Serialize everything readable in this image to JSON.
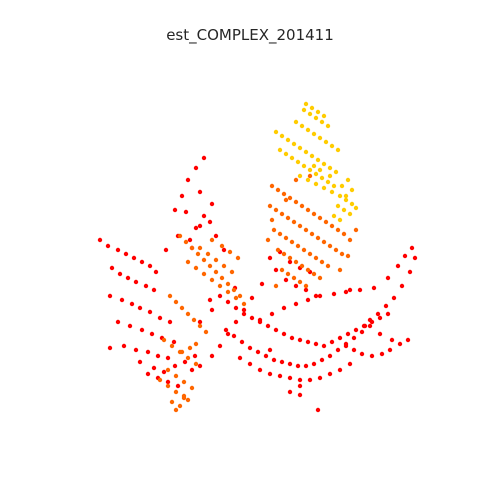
{
  "chart_data": {
    "type": "scatter",
    "title": "est_COMPLEX_201411",
    "xlabel": "",
    "ylabel": "",
    "grid": false,
    "axes_visible": false,
    "legend": "none",
    "series": [
      {
        "color": "#ff0000",
        "x": [
          100,
          108,
          118,
          126,
          134,
          142,
          150,
          156,
          112,
          120,
          128,
          136,
          146,
          154,
          110,
          122,
          132,
          140,
          150,
          160,
          170,
          118,
          130,
          142,
          152,
          162,
          174,
          124,
          136,
          148,
          158,
          168,
          110,
          140,
          154,
          164,
          175,
          185,
          195,
          148,
          158,
          168,
          178,
          192,
          204,
          196,
          188,
          200,
          212,
          204,
          196,
          190,
          182,
          175,
          210,
          216,
          186,
          200,
          192,
          178,
          166,
          220,
          228,
          236,
          244,
          252,
          260,
          268,
          276,
          284,
          292,
          300,
          308,
          316,
          324,
          332,
          340,
          348,
          356,
          364,
          372,
          380,
          388,
          226,
          234,
          242,
          250,
          258,
          266,
          274,
          282,
          290,
          298,
          306,
          314,
          322,
          330,
          338,
          346,
          354,
          362,
          370,
          240,
          250,
          260,
          270,
          280,
          290,
          300,
          310,
          320,
          330,
          340,
          350,
          260,
          272,
          284,
          296,
          308,
          320,
          334,
          346,
          360,
          374,
          388,
          398,
          405,
          412,
          415,
          410,
          402,
          394,
          386,
          378,
          370,
          365,
          380,
          392,
          400,
          408,
          390,
          382,
          372,
          362,
          354,
          346,
          270,
          280,
          290,
          300,
          310,
          286,
          296,
          306,
          316,
          276,
          262,
          252,
          244,
          236,
          228,
          220,
          212,
          200,
          290,
          300,
          212,
          200,
          350,
          318,
          270,
          300,
          210,
          235,
          224
        ],
        "y": [
          240,
          246,
          250,
          254,
          258,
          262,
          266,
          272,
          268,
          274,
          278,
          282,
          286,
          290,
          296,
          300,
          304,
          308,
          312,
          318,
          322,
          322,
          326,
          330,
          334,
          338,
          342,
          346,
          350,
          352,
          356,
          358,
          348,
          362,
          368,
          372,
          366,
          362,
          356,
          374,
          378,
          382,
          386,
          370,
          158,
          168,
          180,
          192,
          204,
          216,
          228,
          240,
          196,
          210,
          222,
          236,
          212,
          226,
          248,
          236,
          250,
          296,
          302,
          308,
          314,
          318,
          322,
          326,
          330,
          334,
          338,
          340,
          342,
          344,
          346,
          342,
          338,
          334,
          330,
          326,
          322,
          318,
          314,
          330,
          336,
          342,
          348,
          352,
          356,
          360,
          362,
          364,
          366,
          366,
          364,
          360,
          356,
          350,
          344,
          338,
          332,
          326,
          358,
          364,
          370,
          374,
          376,
          378,
          380,
          380,
          378,
          374,
          370,
          364,
          320,
          314,
          308,
          304,
          300,
          296,
          294,
          292,
          290,
          288,
          278,
          266,
          256,
          248,
          258,
          272,
          286,
          298,
          306,
          314,
          320,
          326,
          334,
          340,
          344,
          340,
          350,
          354,
          356,
          354,
          350,
          346,
          258,
          252,
          262,
          268,
          272,
          280,
          286,
          290,
          296,
          270,
          284,
          298,
          310,
          322,
          334,
          346,
          356,
          366,
          392,
          386,
          310,
          322,
          290,
          410,
          350,
          395,
          300,
          288,
          250
        ]
      },
      {
        "color": "#ff6600",
        "x": [
          272,
          278,
          284,
          290,
          296,
          302,
          308,
          314,
          320,
          326,
          332,
          338,
          344,
          270,
          276,
          282,
          288,
          294,
          300,
          306,
          312,
          318,
          324,
          330,
          336,
          342,
          274,
          280,
          286,
          292,
          298,
          304,
          310,
          316,
          322,
          328,
          278,
          284,
          290,
          296,
          302,
          308,
          314,
          320,
          282,
          288,
          294,
          300,
          306,
          276,
          272,
          268,
          286,
          296,
          310,
          180,
          186,
          192,
          198,
          204,
          210,
          216,
          222,
          228,
          234,
          240,
          188,
          196,
          204,
          212,
          220,
          228,
          236,
          244,
          200,
          208,
          216,
          224,
          232,
          212,
          222,
          230,
          238,
          170,
          176,
          182,
          188,
          194,
          200,
          206,
          164,
          172,
          180,
          188,
          196,
          168,
          176,
          184,
          192,
          160,
          168,
          176,
          184,
          172,
          180,
          188,
          176,
          184,
          182,
          190,
          196,
          350,
          356,
          348,
          340
        ],
        "y": [
          186,
          190,
          194,
          198,
          202,
          206,
          210,
          214,
          218,
          222,
          226,
          230,
          234,
          206,
          210,
          214,
          218,
          222,
          226,
          230,
          234,
          238,
          242,
          246,
          250,
          254,
          230,
          234,
          238,
          242,
          246,
          250,
          254,
          258,
          262,
          266,
          250,
          254,
          258,
          262,
          266,
          270,
          274,
          278,
          270,
          274,
          278,
          282,
          286,
          286,
          220,
          240,
          200,
          180,
          176,
          236,
          242,
          248,
          254,
          260,
          266,
          272,
          278,
          284,
          290,
          296,
          262,
          268,
          274,
          280,
          286,
          292,
          298,
          304,
          248,
          254,
          260,
          266,
          272,
          240,
          246,
          252,
          258,
          296,
          302,
          308,
          314,
          320,
          326,
          332,
          340,
          346,
          352,
          358,
          364,
          370,
          376,
          382,
          388,
          380,
          386,
          392,
          398,
          402,
          406,
          400,
          410,
          396,
          352,
          348,
          344,
          240,
          230,
          256,
          270
        ]
      },
      {
        "color": "#ffcc00",
        "x": [
          276,
          282,
          288,
          294,
          300,
          306,
          312,
          318,
          324,
          330,
          336,
          280,
          286,
          292,
          298,
          304,
          310,
          316,
          322,
          328,
          334,
          296,
          302,
          308,
          314,
          320,
          326,
          332,
          338,
          304,
          310,
          316,
          322,
          328,
          306,
          312,
          318,
          324,
          300,
          308,
          316,
          324,
          332,
          340,
          346,
          352,
          356,
          338,
          344,
          350,
          334,
          340,
          346,
          352,
          342,
          348,
          330,
          320,
          314
        ],
        "y": [
          132,
          136,
          140,
          144,
          148,
          152,
          156,
          160,
          164,
          168,
          172,
          150,
          154,
          158,
          162,
          166,
          170,
          174,
          178,
          182,
          186,
          122,
          126,
          130,
          134,
          138,
          142,
          146,
          150,
          110,
          114,
          118,
          122,
          126,
          104,
          108,
          112,
          116,
          176,
          180,
          184,
          188,
          192,
          196,
          200,
          204,
          208,
          206,
          210,
          214,
          216,
          220,
          196,
          190,
          186,
          180,
          176,
          170,
          166
        ]
      }
    ]
  }
}
